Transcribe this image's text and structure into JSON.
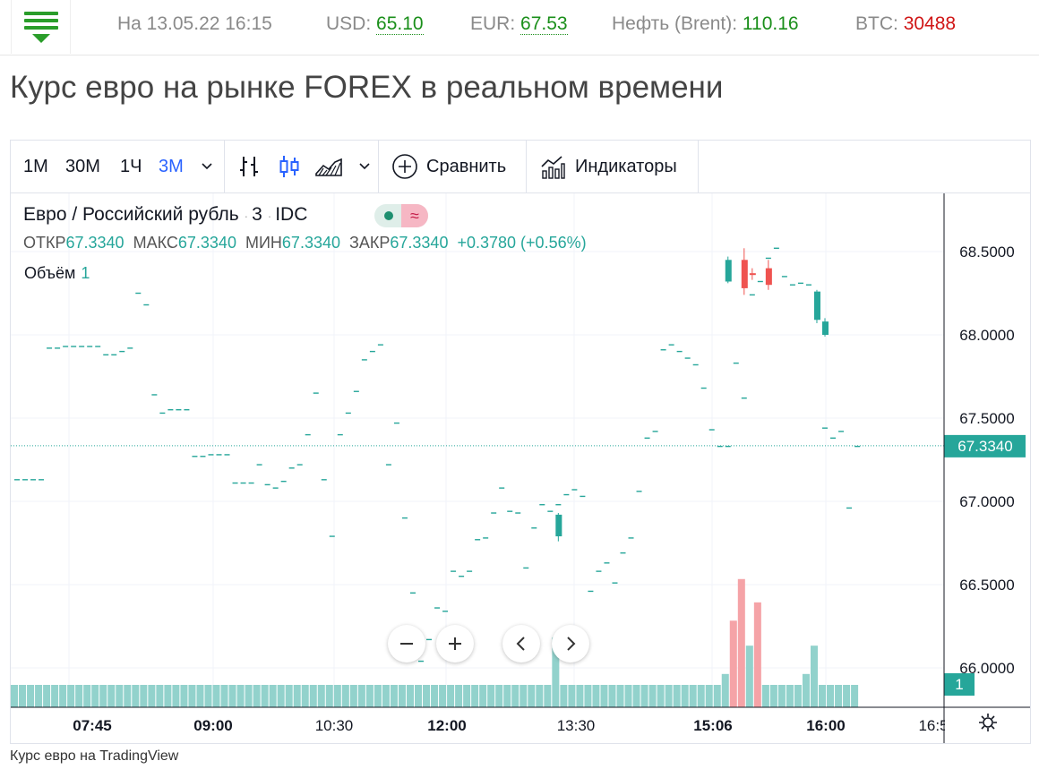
{
  "topbar": {
    "date": "На 13.05.22 16:15",
    "usd_label": "USD:",
    "usd_value": "65.10",
    "eur_label": "EUR:",
    "eur_value": "67.53",
    "oil_label": "Нефть (Brent):",
    "oil_value": "110.16",
    "btc_label": "BTC:",
    "btc_value": "30488"
  },
  "page_title": "Курс евро на рынке FOREX в реальном времени",
  "toolbar": {
    "timeframes": [
      "1М",
      "30М",
      "1Ч",
      "3М"
    ],
    "compare_label": "Сравнить",
    "indicators_label": "Индикаторы"
  },
  "legend": {
    "symbol": "Евро / Российский рубль",
    "interval": "3",
    "source": "IDC",
    "live_icon": "≈",
    "open_label": "ОТКР",
    "open": "67.3340",
    "high_label": "МАКС",
    "high": "67.3340",
    "low_label": "МИН",
    "low": "67.3340",
    "close_label": "ЗАКР",
    "close": "67.3340",
    "change": "+0.3780 (+0.56%)",
    "volume_label": "Объём",
    "volume": "1"
  },
  "footer_link": "Курс евро на TradingView",
  "colors": {
    "up": "#26a69a",
    "down": "#ef5350",
    "up_vol": "#92d2cc",
    "down_vol": "#f5a3a7",
    "accent": "#2962ff",
    "brand_green": "#2a9d2a"
  },
  "chart_data": {
    "type": "candlestick",
    "symbol": "EUR/RUB",
    "interval_minutes": 3,
    "last_price": "67.3340",
    "last_volume": "1",
    "y_ticks": [
      "68.5000",
      "68.0000",
      "67.5000",
      "67.0000",
      "66.5000",
      "66.0000"
    ],
    "x_ticks": [
      {
        "label": "07:45",
        "bold": true
      },
      {
        "label": "09:00",
        "bold": true
      },
      {
        "label": "10:30",
        "bold": false
      },
      {
        "label": "12:00",
        "bold": true
      },
      {
        "label": "13:30",
        "bold": false
      },
      {
        "label": "15:06",
        "bold": true
      },
      {
        "label": "16:00",
        "bold": true
      },
      {
        "label": "16:5",
        "bold": false
      }
    ],
    "ylim": [
      65.8,
      68.8
    ],
    "dash_prices": [
      67.13,
      67.13,
      67.13,
      67.13,
      67.92,
      67.92,
      67.93,
      67.93,
      67.93,
      67.93,
      67.93,
      67.88,
      67.88,
      67.9,
      67.92,
      68.25,
      68.18,
      67.64,
      67.53,
      67.55,
      67.55,
      67.55,
      67.27,
      67.27,
      67.28,
      67.28,
      67.28,
      67.11,
      67.11,
      67.11,
      67.22,
      67.1,
      67.08,
      67.12,
      67.2,
      67.22,
      67.4,
      67.65,
      67.13,
      66.79,
      67.4,
      67.53,
      67.66,
      67.85,
      67.9,
      67.94,
      67.22,
      67.47,
      66.9,
      66.45,
      66.04,
      66.17,
      66.36,
      66.34,
      66.58,
      66.55,
      66.58,
      66.77,
      66.78,
      66.93,
      67.08,
      66.94,
      66.93,
      66.6,
      66.84,
      66.98,
      66.94,
      66.98,
      67.04,
      67.07,
      67.03,
      66.46,
      66.58,
      66.63,
      66.51,
      66.69,
      66.78,
      67.06,
      67.38,
      67.42,
      67.91,
      67.94,
      67.9,
      67.86,
      67.82,
      67.68,
      67.43,
      67.33,
      67.33,
      67.83,
      67.62,
      68.24,
      68.32,
      68.46,
      68.52,
      68.35,
      68.3,
      68.31,
      68.3,
      68.1,
      67.44,
      67.38,
      67.42,
      66.96,
      67.33
    ]
  }
}
